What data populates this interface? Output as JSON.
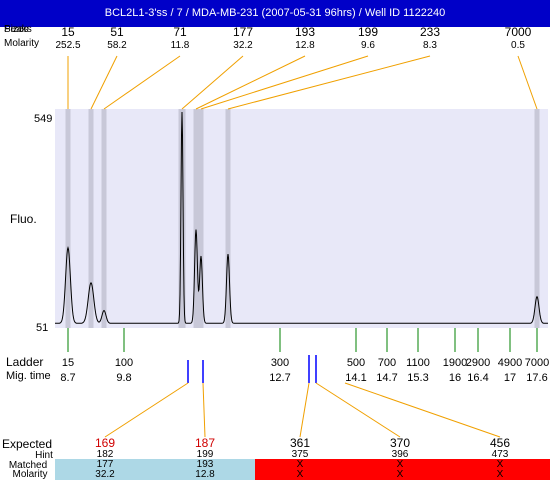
{
  "title": "BCL2L1-3'ss / 7 / MDA-MB-231 (2007-05-31 96hrs) / Well ID 1122240",
  "header": {
    "size_label_1": "Peaks",
    "size_label_2": "Sizes",
    "molarity_label": "Molarity"
  },
  "peaks": [
    {
      "size": "15",
      "molarity": "252.5"
    },
    {
      "size": "51",
      "molarity": "58.2"
    },
    {
      "size": "71",
      "molarity": "11.8"
    },
    {
      "size": "177",
      "molarity": "32.2"
    },
    {
      "size": "193",
      "molarity": "12.8"
    },
    {
      "size": "199",
      "molarity": "9.6"
    },
    {
      "size": "233",
      "molarity": "8.3"
    },
    {
      "size": "7000",
      "molarity": "0.5"
    }
  ],
  "axis": {
    "y_top_label": "549",
    "y_bottom_label": "51",
    "y_axis_title": "Fluo."
  },
  "ladder": {
    "label": "Ladder",
    "mig_label": "Mig. time",
    "sizes": [
      "15",
      "100",
      "300",
      "500",
      "700",
      "1100",
      "1900",
      "2900",
      "4900",
      "7000"
    ],
    "mig_times": [
      "8.7",
      "9.8",
      "12.7",
      "14.1",
      "14.7",
      "15.3",
      "16",
      "16.4",
      "17",
      "17.6"
    ]
  },
  "bottom": {
    "expected_label": "Expected",
    "hint_label": "Hint",
    "matched_label": "Matched",
    "molarity_label": "Molarity",
    "columns": [
      {
        "expected": "169",
        "hint": "182",
        "matched": "177",
        "molarity": "32.2"
      },
      {
        "expected": "187",
        "hint": "199",
        "matched": "193",
        "molarity": "12.8"
      },
      {
        "expected": "361",
        "hint": "375",
        "matched": "X",
        "molarity": "X"
      },
      {
        "expected": "370",
        "hint": "396",
        "matched": "X",
        "molarity": "X"
      },
      {
        "expected": "456",
        "hint": "473",
        "matched": "X",
        "molarity": "X"
      }
    ]
  },
  "colors": {
    "title_bg": "#0000c8",
    "plot_bg": "#e8e8f8",
    "band": "#c8c8d8",
    "connector": "#f0a000",
    "ladder_tick": "#008000",
    "marker": "#0000ff",
    "matched_bg": "#add8e6",
    "unmatched_bg": "#ff0000",
    "expected_highlight": "#d00000"
  },
  "chart_data": {
    "type": "line",
    "title": "BCL2L1-3'ss / 7 / MDA-MB-231 (2007-05-31 96hrs) / Well ID 1122240",
    "xlabel": "",
    "ylabel": "Fluo.",
    "ylim": [
      51,
      549
    ],
    "x_unit": "migration time",
    "peaks_bp": [
      15,
      51,
      71,
      177,
      193,
      199,
      233,
      7000
    ],
    "peak_molarity": [
      252.5,
      58.2,
      11.8,
      32.2,
      12.8,
      9.6,
      8.3,
      0.5
    ],
    "ladder_sizes": [
      15,
      100,
      300,
      500,
      700,
      1100,
      1900,
      2900,
      4900,
      7000
    ],
    "ladder_mig_time": [
      8.7,
      9.8,
      12.7,
      14.1,
      14.7,
      15.3,
      16,
      16.4,
      17,
      17.6
    ]
  }
}
